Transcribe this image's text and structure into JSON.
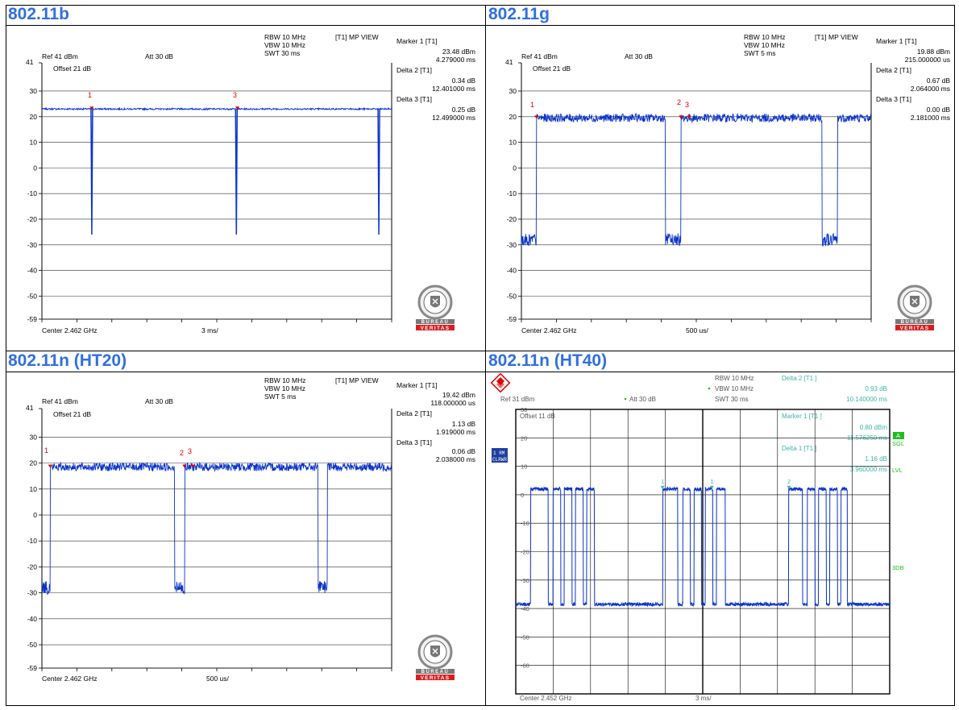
{
  "panels": [
    {
      "id": "b",
      "title": "802.11b",
      "rbw": "RBW 10 MHz",
      "vbw": "VBW 10 MHz",
      "swt": "SWT 30 ms",
      "view": "[T1] MP VIEW",
      "ref": "Ref 41 dBm",
      "att": "Att 30 dB",
      "offset": "Offset 21 dB",
      "top_tick": "41",
      "center": "Center 2.462 GHz",
      "span": "3 ms/",
      "markers": [
        {
          "label": "Marker 1 [T1]",
          "value": "23.48 dBm",
          "time": "4.279000 ms"
        },
        {
          "label": "Delta 2 [T1]",
          "value": "0.34 dB",
          "time": "12.401000 ms"
        },
        {
          "label": "Delta 3 [T1]",
          "value": "0.25 dB",
          "time": "12.499000 ms"
        }
      ],
      "marker_tags": [
        "1",
        "3"
      ]
    },
    {
      "id": "g",
      "title": "802.11g",
      "rbw": "RBW 10 MHz",
      "vbw": "VBW 10 MHz",
      "swt": "SWT 5 ms",
      "view": "[T1] MP VIEW",
      "ref": "Ref 41 dBm",
      "att": "Att 30 dB",
      "offset": "Offset 21 dB",
      "top_tick": "41",
      "center": "Center 2.462 GHz",
      "span": "500 us/",
      "markers": [
        {
          "label": "Marker 1 [T1]",
          "value": "19.88 dBm",
          "time": "215.000000 us"
        },
        {
          "label": "Delta 2 [T1]",
          "value": "0.67 dB",
          "time": "2.064000 ms"
        },
        {
          "label": "Delta 3 [T1]",
          "value": "0.00 dB",
          "time": "2.181000 ms"
        }
      ],
      "marker_tags": [
        "1",
        "2",
        "3"
      ]
    },
    {
      "id": "n20",
      "title": "802.11n (HT20)",
      "rbw": "RBW 10 MHz",
      "vbw": "VBW 10 MHz",
      "swt": "SWT 5 ms",
      "view": "[T1] MP VIEW",
      "ref": "Ref 41 dBm",
      "att": "Att 30 dB",
      "offset": "Offset 21 dB",
      "top_tick": "41",
      "center": "Center 2.462 GHz",
      "span": "500 us/",
      "markers": [
        {
          "label": "Marker 1 [T1]",
          "value": "19.42 dBm",
          "time": "118.000000 us"
        },
        {
          "label": "Delta 2 [T1]",
          "value": "1.13 dB",
          "time": "1.919000 ms"
        },
        {
          "label": "Delta 3 [T1]",
          "value": "0.06 dB",
          "time": "2.038000 ms"
        }
      ],
      "marker_tags": [
        "1",
        "2",
        "3"
      ]
    },
    {
      "id": "n40",
      "title": "802.11n (HT40)",
      "rbw": "RBW 10 MHz",
      "vbw": "VBW 10 MHz",
      "swt": "SWT 30 ms",
      "delta2": "Delta 2 [T1 ]",
      "delta2_val": "0.93 dB",
      "delta2_time": "10.140000 ms",
      "ref": "Ref 31 dBm",
      "att": "Att 30 dB",
      "offset": "Offset 11 dB",
      "marker1": "Marker 1 [T1 ]",
      "marker1_val": "0.80 dBm",
      "marker1_time": "11.576250 ms",
      "delta1": "Delta 1 [T1 ]",
      "delta1_val": "1.16 dB",
      "delta1_time": "3.960000 ms",
      "side_a": "A",
      "side_sgl": "SGL",
      "side_lvl": "LVL",
      "side_3db": "3DB",
      "box_rm": "1 RM",
      "box_clrwr": "CLRWR",
      "ticks": [
        "30",
        "20",
        "10",
        "0",
        "-10",
        "-20",
        "-30",
        "-40",
        "-50",
        "-60"
      ],
      "center": "Center 2.452 GHz",
      "span": "3 ms/"
    }
  ],
  "logo": {
    "top": "BUREAU",
    "bottom": "VERITAS",
    "year": "1828",
    "ring": "BUREAU VERITAS"
  },
  "colors": {
    "title": "#2f6fe0",
    "trace": "#0a33cc",
    "marker": "#e00000",
    "rs_text": "#3cb6a8",
    "rs_green": "#1fbf1f"
  },
  "chart_data": [
    {
      "type": "line",
      "title": "802.11b",
      "ylim": [
        -59,
        41
      ],
      "y_ticks": [
        41,
        30,
        20,
        10,
        0,
        -10,
        -20,
        -30,
        -40,
        -50,
        -59
      ],
      "xlim_ms": [
        0,
        30
      ],
      "series": [
        {
          "baseline": 23,
          "pulses": [
            {
              "t": 4.28,
              "low": -26
            },
            {
              "t": 16.68,
              "low": -26
            },
            {
              "t": 28.9,
              "low": -26
            }
          ]
        }
      ],
      "noise": 0.3,
      "markers_x": [
        4.28,
        16.77
      ]
    },
    {
      "type": "line",
      "title": "802.11g",
      "ylim": [
        -59,
        41
      ],
      "y_ticks": [
        41,
        30,
        20,
        10,
        0,
        -10,
        -20,
        -30,
        -40,
        -50,
        -59
      ],
      "xlim_ms": [
        0,
        5
      ],
      "series": [
        {
          "baseline": 19.5,
          "gaps": [
            {
              "start": 0.0,
              "end": 0.215,
              "low": -28
            },
            {
              "start": 2.06,
              "end": 2.28,
              "low": -28
            },
            {
              "start": 4.3,
              "end": 4.52,
              "low": -28
            }
          ]
        }
      ],
      "noise": 1.6,
      "markers_x": [
        0.215,
        2.279,
        2.396
      ]
    },
    {
      "type": "line",
      "title": "802.11n (HT20)",
      "ylim": [
        -59,
        41
      ],
      "y_ticks": [
        41,
        30,
        20,
        10,
        0,
        -10,
        -20,
        -30,
        -40,
        -50,
        -59
      ],
      "xlim_ms": [
        0,
        5
      ],
      "series": [
        {
          "baseline": 18.5,
          "gaps": [
            {
              "start": 0.0,
              "end": 0.118,
              "low": -28
            },
            {
              "start": 1.9,
              "end": 2.04,
              "low": -28
            },
            {
              "start": 3.95,
              "end": 4.08,
              "low": -28
            }
          ]
        }
      ],
      "noise": 1.6,
      "markers_x": [
        0.118,
        2.037,
        2.156
      ]
    },
    {
      "type": "line",
      "title": "802.11n (HT40)",
      "ylim": [
        -70,
        30
      ],
      "xlim_ms": [
        0,
        30
      ],
      "series": [
        {
          "high": 2,
          "low": -38.5,
          "bursts": [
            [
              1.2,
              2.6
            ],
            [
              3.0,
              3.6
            ],
            [
              3.9,
              4.5
            ],
            [
              4.8,
              5.4
            ],
            [
              5.7,
              6.3
            ],
            [
              11.8,
              13.0
            ],
            [
              13.4,
              14.0
            ],
            [
              14.3,
              14.9
            ],
            [
              15.2,
              15.8
            ],
            [
              16.1,
              16.8
            ],
            [
              21.9,
              23.0
            ],
            [
              23.4,
              24.0
            ],
            [
              24.3,
              24.9
            ],
            [
              25.2,
              25.8
            ],
            [
              26.1,
              26.6
            ]
          ]
        }
      ],
      "noise": 0.6,
      "markers_x": [
        11.78,
        15.74,
        21.92
      ]
    }
  ]
}
